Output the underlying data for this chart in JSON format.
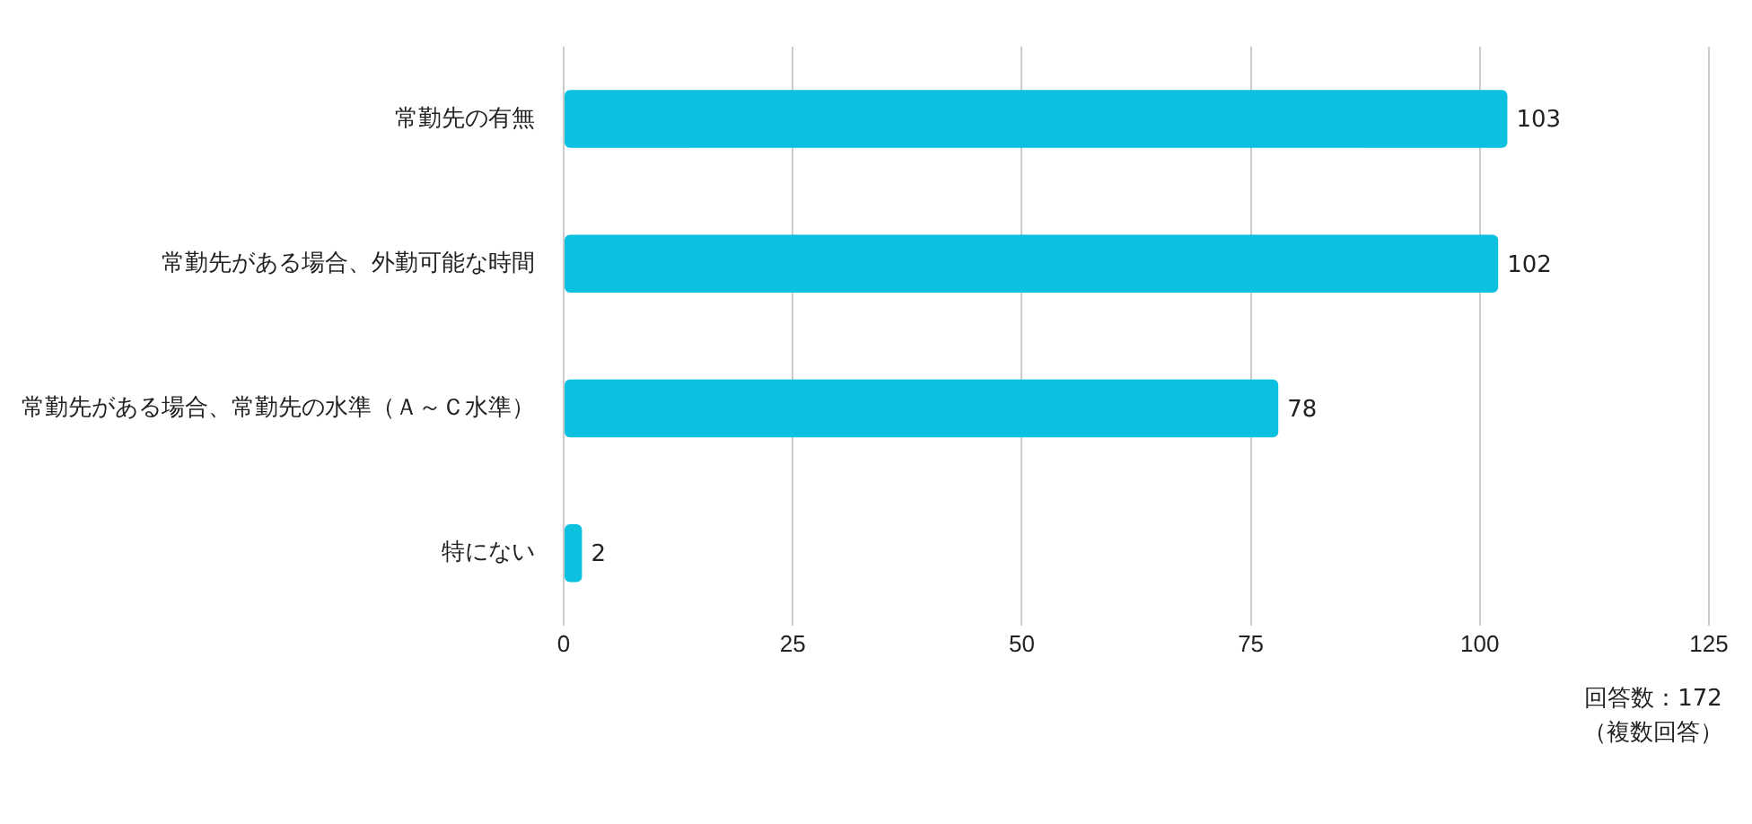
{
  "chart_data": {
    "type": "bar",
    "orientation": "horizontal",
    "categories": [
      "常勤先の有無",
      "常勤先がある場合、外勤可能な時間",
      "常勤先がある場合、常勤先の水準（Ａ～Ｃ水準）",
      "特にない"
    ],
    "values": [
      103,
      102,
      78,
      2
    ],
    "color": "#0cc0df",
    "xlim": [
      0,
      125
    ],
    "xticks": [
      0,
      25,
      50,
      75,
      100,
      125
    ],
    "grid": "x",
    "data_labels": true,
    "annotations": [
      "回答数：172",
      "（複数回答）"
    ]
  }
}
